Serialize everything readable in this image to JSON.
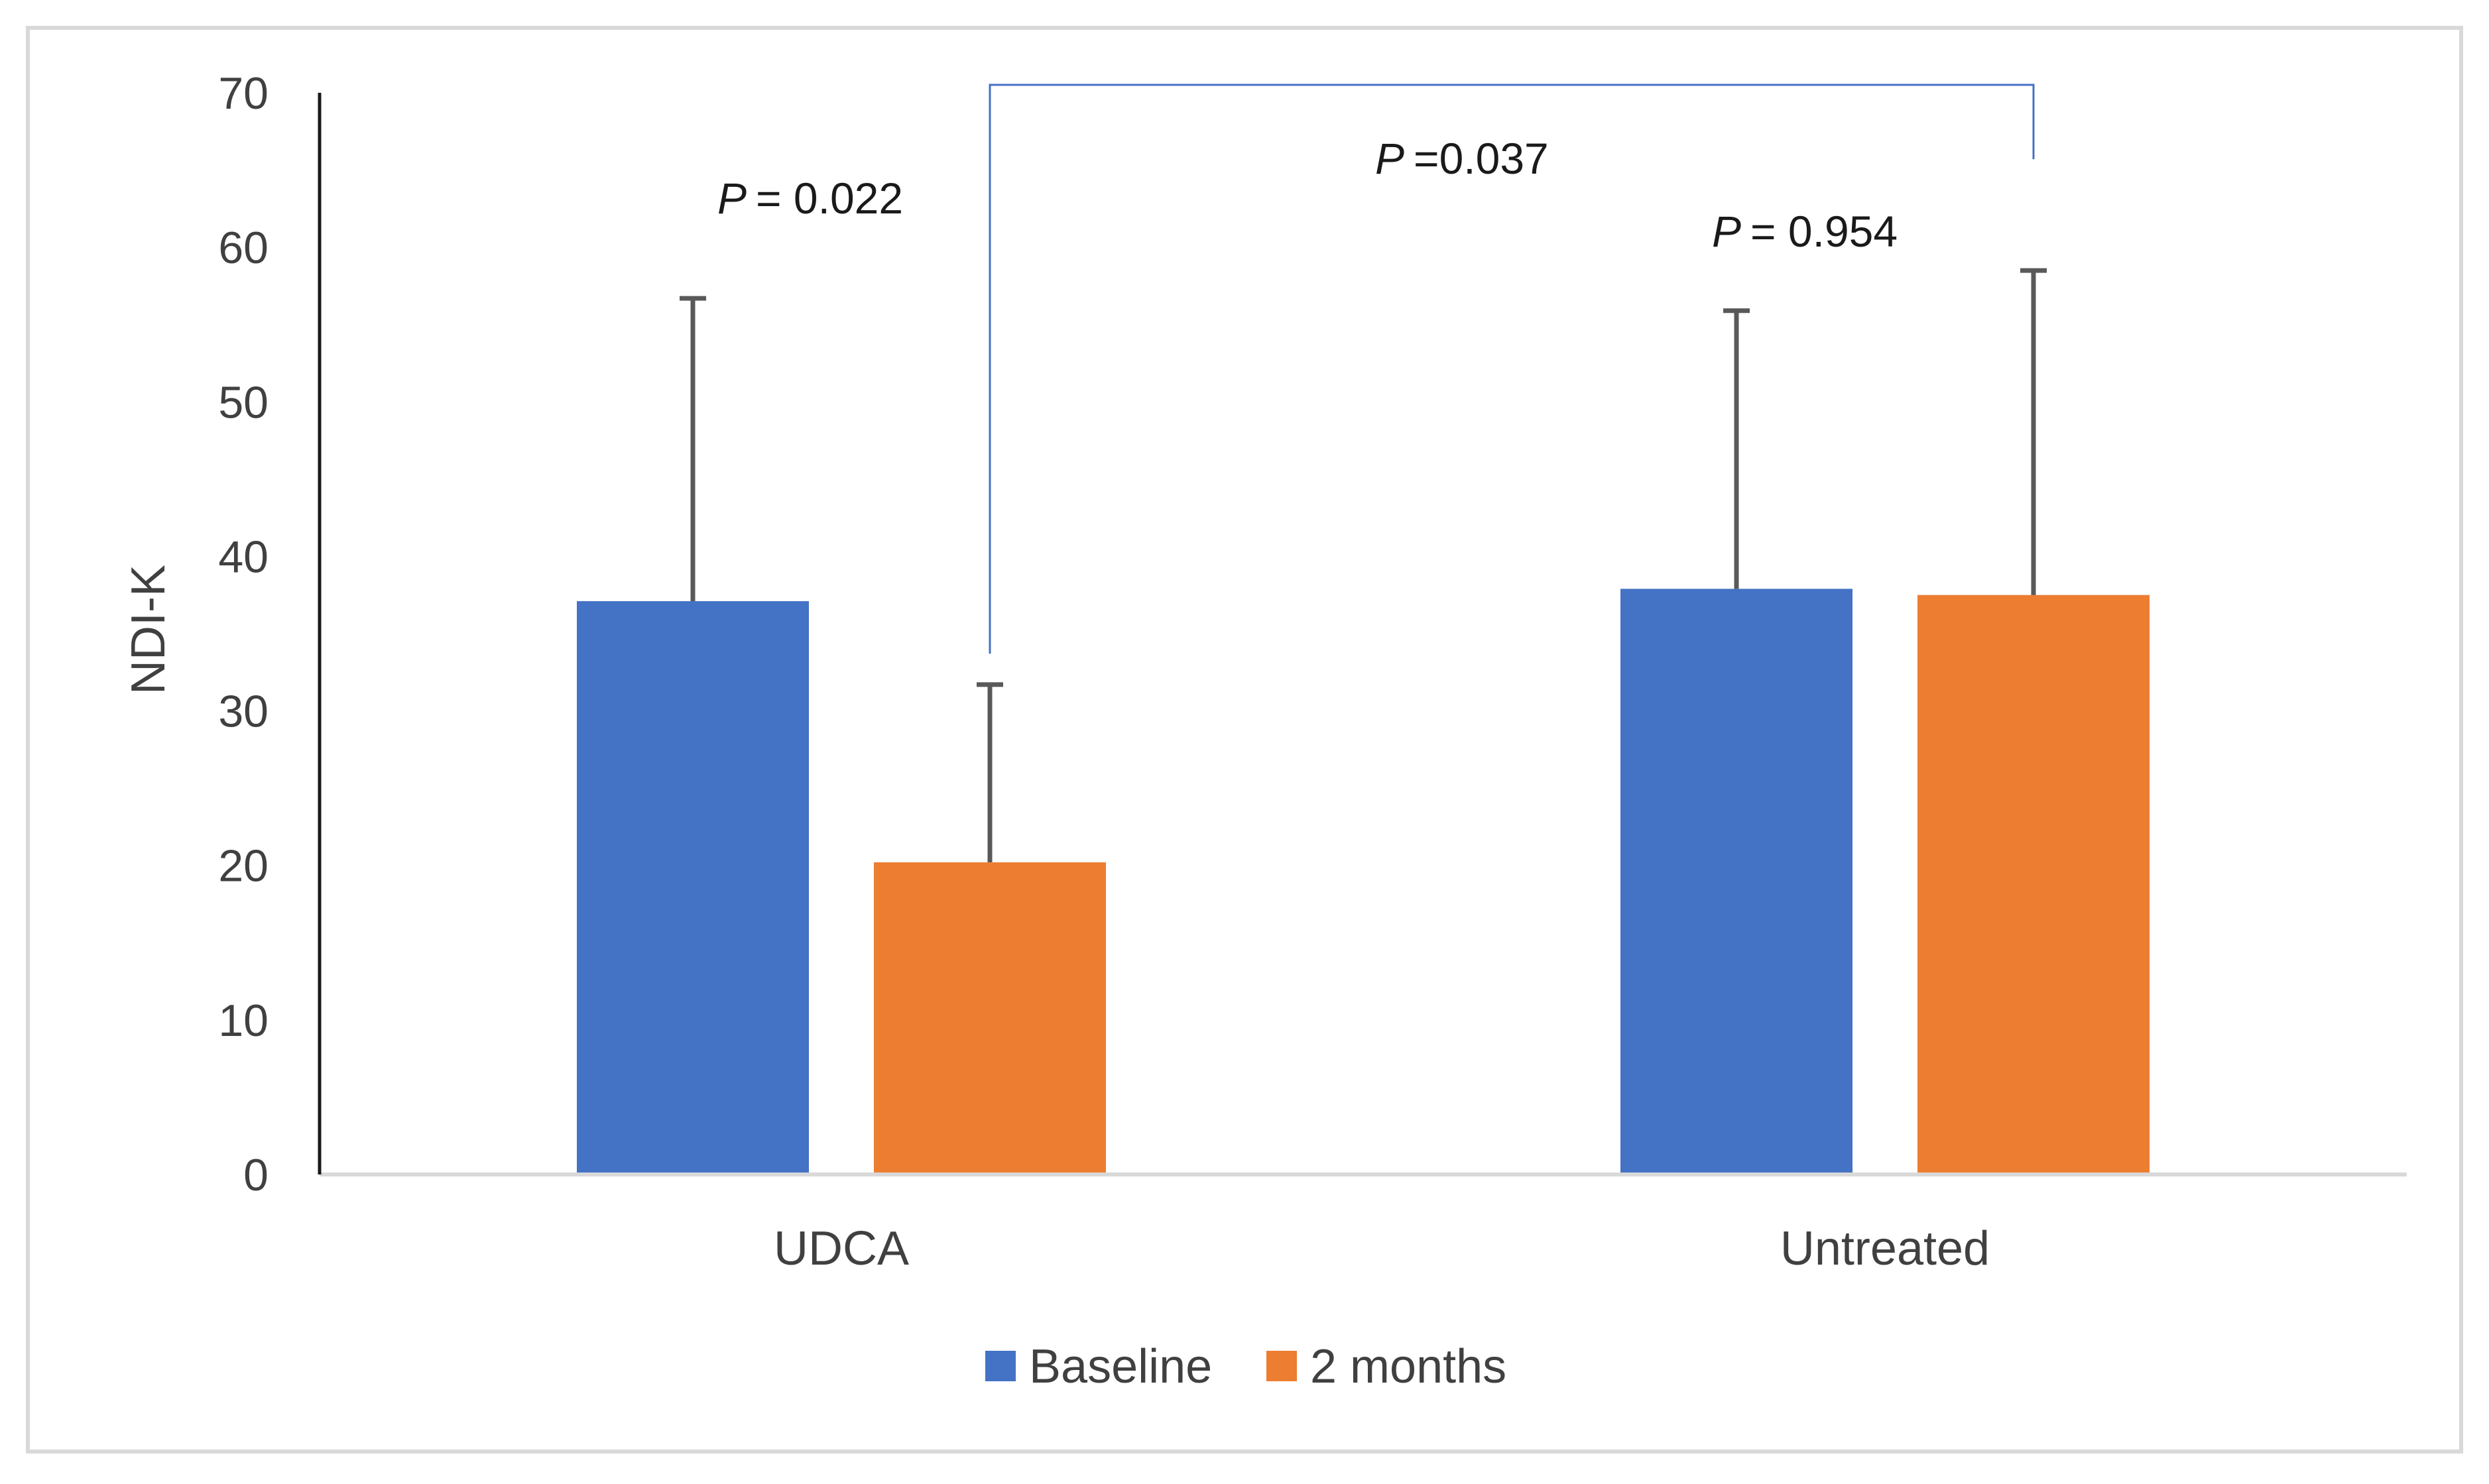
{
  "chart_data": {
    "type": "bar",
    "title": "",
    "xlabel": "",
    "ylabel": "NDI-K",
    "ylim": [
      0,
      70
    ],
    "yticks": [
      0,
      10,
      20,
      30,
      40,
      50,
      60,
      70
    ],
    "grid": false,
    "legend_position": "bottom-center",
    "categories": [
      "UDCA",
      "Untreated"
    ],
    "series": [
      {
        "name": "Baseline",
        "color": "#4472C4",
        "values": [
          37.1,
          37.9
        ],
        "error_upper": [
          56.7,
          55.9
        ]
      },
      {
        "name": "2 months",
        "color": "#ED7D31",
        "values": [
          20.2,
          37.5
        ],
        "error_upper": [
          31.7,
          58.5
        ]
      }
    ],
    "annotations": [
      {
        "italic": "P",
        "text": "= 0.022",
        "group": "UDCA"
      },
      {
        "italic": "P",
        "text": "= 0.954",
        "group": "Untreated"
      },
      {
        "italic": "P",
        "text": "=0.037",
        "group": "between"
      }
    ],
    "comparison_line_color": "#4472C4",
    "error_bar_color": "#595959",
    "axis_color": "#D9D9D9"
  }
}
